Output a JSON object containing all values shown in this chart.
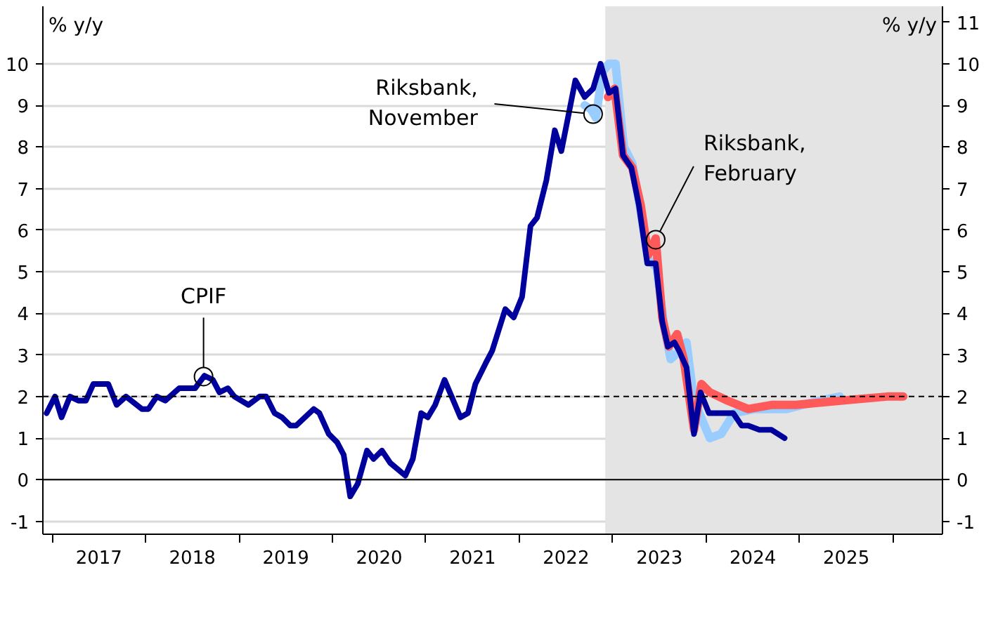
{
  "chart_data": {
    "type": "line",
    "ylabel": "% y/y",
    "y2label": "% y/y",
    "xlim": [
      2016.9,
      2026.53
    ],
    "xticks": [
      {
        "value": 2017,
        "label": null
      },
      {
        "value": 2017.5,
        "label": "2017"
      },
      {
        "value": 2018,
        "label": null
      },
      {
        "value": 2018.5,
        "label": "2018"
      },
      {
        "value": 2019,
        "label": null
      },
      {
        "value": 2019.5,
        "label": "2019"
      },
      {
        "value": 2020,
        "label": null
      },
      {
        "value": 2020.5,
        "label": "2020"
      },
      {
        "value": 2021,
        "label": null
      },
      {
        "value": 2021.5,
        "label": "2021"
      },
      {
        "value": 2022,
        "label": null
      },
      {
        "value": 2022.5,
        "label": "2022"
      },
      {
        "value": 2023,
        "label": null
      },
      {
        "value": 2023.5,
        "label": "2023"
      },
      {
        "value": 2024,
        "label": null
      },
      {
        "value": 2024.5,
        "label": "2024"
      },
      {
        "value": 2025,
        "label": null
      },
      {
        "value": 2025.5,
        "label": "2025"
      },
      {
        "value": 2026,
        "label": null
      }
    ],
    "ylim": [
      -1.31,
      11.38
    ],
    "yticks": [
      -1,
      0,
      1,
      2,
      3,
      4,
      5,
      6,
      7,
      8,
      9,
      10
    ],
    "y2lim": [
      -1.31,
      11.38
    ],
    "y2ticks": [
      -1,
      0,
      1,
      2,
      3,
      4,
      5,
      6,
      7,
      8,
      9,
      10,
      11
    ],
    "grid": "y",
    "line_style": "solid",
    "series": [
      {
        "color": "#99ccff",
        "x": [
          2022.7,
          2022.77,
          2022.82,
          2022.89,
          2022.96,
          2023.03,
          2023.12,
          2023.21,
          2023.28,
          2023.38,
          2023.47,
          2023.55,
          2023.62,
          2023.72,
          2023.79,
          2023.87,
          2024.04,
          2024.16,
          2024.3,
          2024.52,
          2024.86,
          2025.21,
          2025.43
        ],
        "values": [
          9.0,
          8.9,
          8.7,
          9.8,
          10.0,
          10.0,
          8.0,
          7.6,
          6.7,
          5.3,
          5.1,
          3.7,
          2.9,
          3.1,
          3.3,
          1.9,
          1.0,
          1.1,
          1.6,
          1.7,
          1.7,
          1.9,
          2.0
        ]
      },
      {
        "color": "#ff5a5a",
        "x": [
          2022.95,
          2023.02,
          2023.11,
          2023.21,
          2023.3,
          2023.38,
          2023.46,
          2023.53,
          2023.6,
          2023.69,
          2023.76,
          2023.87,
          2023.95,
          2024.04,
          2024.23,
          2024.45,
          2024.71,
          2024.96,
          2025.44,
          2025.94,
          2026.11
        ],
        "values": [
          9.2,
          9.4,
          7.8,
          7.5,
          6.6,
          5.4,
          5.8,
          3.9,
          3.2,
          3.5,
          2.9,
          1.2,
          2.3,
          2.1,
          1.9,
          1.7,
          1.8,
          1.8,
          1.9,
          2.0,
          2.0
        ]
      },
      {
        "color": "#00009c",
        "x": [
          2016.94,
          2017.03,
          2017.1,
          2017.19,
          2017.28,
          2017.36,
          2017.44,
          2017.6,
          2017.69,
          2017.79,
          2017.96,
          2018.03,
          2018.12,
          2018.21,
          2018.36,
          2018.53,
          2018.63,
          2018.72,
          2018.79,
          2018.88,
          2018.95,
          2019.1,
          2019.22,
          2019.29,
          2019.38,
          2019.46,
          2019.55,
          2019.61,
          2019.8,
          2019.86,
          2019.96,
          2020.05,
          2020.12,
          2020.19,
          2020.27,
          2020.37,
          2020.44,
          2020.53,
          2020.62,
          2020.78,
          2020.86,
          2020.95,
          2021.02,
          2021.1,
          2021.2,
          2021.37,
          2021.45,
          2021.53,
          2021.64,
          2021.71,
          2021.85,
          2021.94,
          2022.03,
          2022.12,
          2022.19,
          2022.29,
          2022.38,
          2022.45,
          2022.6,
          2022.7,
          2022.79,
          2022.87,
          2022.96,
          2023.03,
          2023.11,
          2023.2,
          2023.28,
          2023.37,
          2023.46,
          2023.53,
          2023.59,
          2023.66,
          2023.71,
          2023.79,
          2023.87,
          2023.94,
          2024.03,
          2024.11,
          2024.29,
          2024.38,
          2024.45,
          2024.57,
          2024.7,
          2024.84
        ],
        "values": [
          1.6,
          2.0,
          1.5,
          2.0,
          1.9,
          1.9,
          2.3,
          2.3,
          1.8,
          2.0,
          1.7,
          1.7,
          2.0,
          1.9,
          2.2,
          2.2,
          2.5,
          2.4,
          2.1,
          2.2,
          2.0,
          1.8,
          2.0,
          2.0,
          1.6,
          1.5,
          1.3,
          1.3,
          1.7,
          1.6,
          1.1,
          0.9,
          0.6,
          -0.4,
          -0.1,
          0.7,
          0.5,
          0.7,
          0.4,
          0.1,
          0.5,
          1.6,
          1.5,
          1.8,
          2.4,
          1.5,
          1.6,
          2.3,
          2.8,
          3.1,
          4.1,
          3.9,
          4.4,
          6.1,
          6.3,
          7.2,
          8.4,
          7.9,
          9.6,
          9.2,
          9.4,
          10.0,
          9.3,
          9.4,
          7.8,
          7.5,
          6.6,
          5.2,
          5.2,
          3.8,
          3.2,
          3.3,
          3.1,
          2.7,
          1.1,
          2.1,
          1.6,
          1.6,
          1.6,
          1.3,
          1.3,
          1.2,
          1.2,
          1.0
        ]
      }
    ],
    "ref_lines": [
      {
        "axis": "y",
        "value": 2,
        "color": "#000000",
        "line_style": "dashed"
      },
      {
        "axis": "y",
        "value": 0,
        "color": "#000000",
        "line_style": "solid"
      }
    ],
    "bands": [
      {
        "axis": "x",
        "from": 2022.92,
        "to": 2026.53,
        "color": "#e4e4e4"
      }
    ],
    "annotations": [
      {
        "text": "CPIF",
        "x": 2018.62,
        "y": 2.48
      },
      {
        "text": "Riksbank,\nNovember",
        "x": 2022.79,
        "y": 8.79
      },
      {
        "text": "Riksbank,\nFebruary",
        "x": 2023.46,
        "y": 5.77
      }
    ]
  }
}
